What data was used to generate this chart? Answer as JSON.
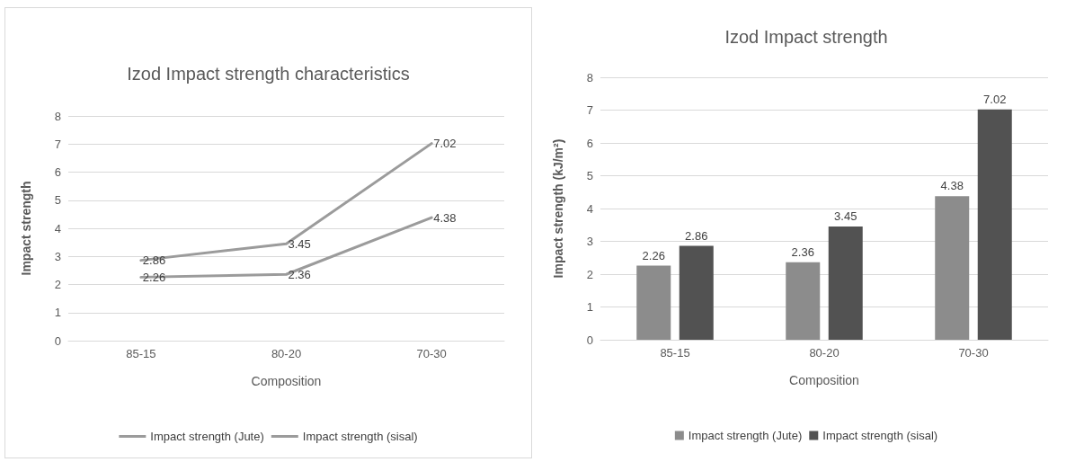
{
  "chart_data": [
    {
      "type": "line",
      "title": "Izod Impact strength characteristics",
      "xlabel": "Composition",
      "ylabel": "Impact strength",
      "categories": [
        "85-15",
        "80-20",
        "70-30"
      ],
      "ylim": [
        0,
        8
      ],
      "yticks": [
        0,
        1,
        2,
        3,
        4,
        5,
        6,
        7,
        8
      ],
      "grid": "y",
      "legend": "bottom",
      "data_labels": true,
      "marker": "none",
      "line_style": "solid",
      "series": [
        {
          "name": "Impact strength (Jute)",
          "color": "#9b9b9b",
          "values": [
            2.26,
            2.36,
            4.38
          ]
        },
        {
          "name": "Impact strength (sisal)",
          "color": "#9b9b9b",
          "values": [
            2.86,
            3.45,
            7.02
          ]
        }
      ]
    },
    {
      "type": "bar",
      "title": "Izod Impact strength",
      "xlabel": "Composition",
      "ylabel": "Impact strength (kJ/m²)",
      "categories": [
        "85-15",
        "80-20",
        "70-30"
      ],
      "ylim": [
        0,
        8
      ],
      "yticks": [
        0,
        1,
        2,
        3,
        4,
        5,
        6,
        7,
        8
      ],
      "grid": "y",
      "legend": "bottom",
      "data_labels": true,
      "series": [
        {
          "name": "Impact strength (Jute)",
          "color": "#8c8c8c",
          "values": [
            2.26,
            2.36,
            4.38
          ]
        },
        {
          "name": "Impact strength (sisal)",
          "color": "#525252",
          "values": [
            2.86,
            3.45,
            7.02
          ]
        }
      ]
    }
  ]
}
